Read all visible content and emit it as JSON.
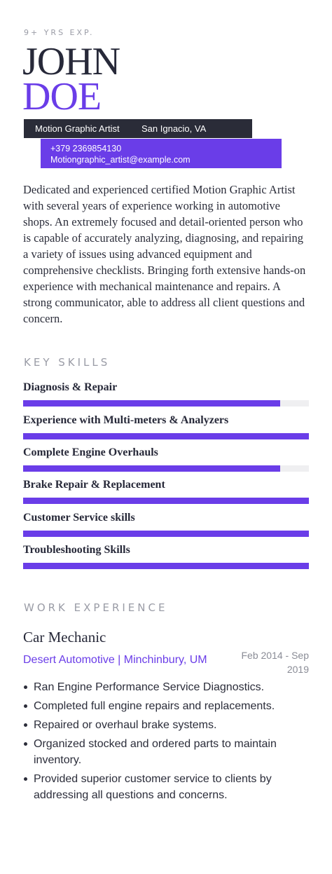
{
  "header": {
    "experience": "9+ YRS EXP.",
    "first_name": "JOHN",
    "last_name": "DOE",
    "role": "Motion Graphic Artist",
    "location": "San Ignacio, VA",
    "phone": "+379 2369854130",
    "email": "Motiongraphic_artist@example.com"
  },
  "summary": "Dedicated and experienced certified Motion Graphic Artist with several years of experience working in automotive shops. An extremely focused and detail-oriented person who is capable of accurately analyzing, diagnosing, and repairing a variety of issues using advanced equipment and comprehensive checklists. Bringing forth extensive hands-on experience with mechanical maintenance and repairs. A strong communicator, able to address all client questions and concern.",
  "skills": {
    "title": "KEY SKILLS",
    "items": [
      {
        "label": "Diagnosis & Repair",
        "level": 0.9
      },
      {
        "label": "Experience with Multi-meters & Analyzers",
        "level": 1.0
      },
      {
        "label": "Complete Engine Overhauls",
        "level": 0.9
      },
      {
        "label": "Brake Repair & Replacement",
        "level": 1.0
      },
      {
        "label": "Customer Service skills",
        "level": 1.0
      },
      {
        "label": "Troubleshooting Skills",
        "level": 1.0
      }
    ]
  },
  "work": {
    "title": "WORK EXPERIENCE",
    "jobs": [
      {
        "title": "Car Mechanic",
        "employer": "Desert Automotive | Minchinbury, UM",
        "dates": "Feb 2014 - Sep 2019",
        "duties": [
          "Ran Engine Performance Service Diagnostics.",
          "Completed full engine repairs and replacements.",
          "Repaired or overhaul brake systems.",
          "Organized stocked and ordered parts to maintain inventory.",
          "Provided superior customer service to clients by addressing all questions and concerns."
        ]
      }
    ]
  },
  "colors": {
    "accent": "#6a3de8",
    "dark": "#2a2c38",
    "muted": "#9a9ca6"
  }
}
